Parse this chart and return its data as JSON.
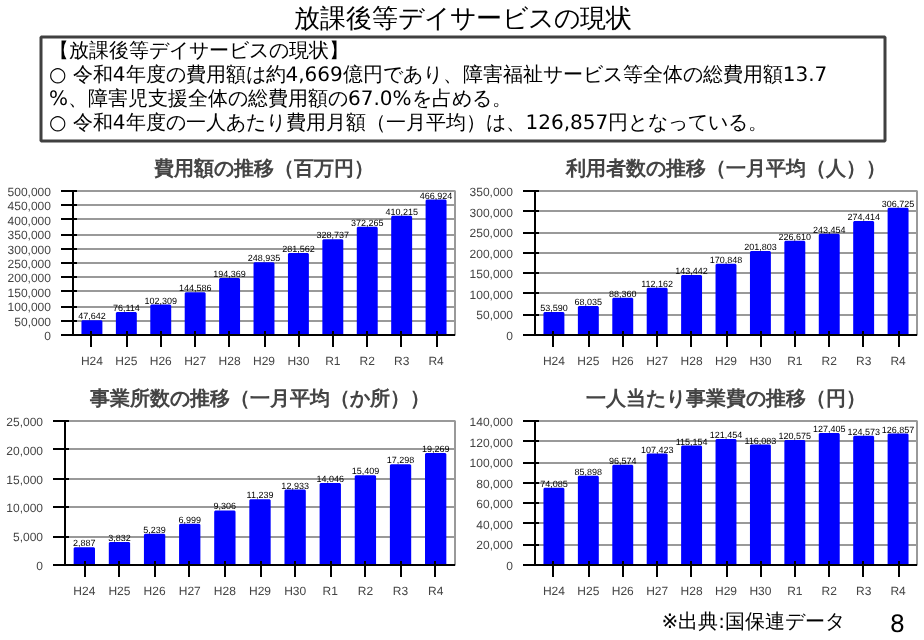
{
  "chart_data": [
    {
      "type": "other",
      "title": "放課後等デイサービスの現状",
      "subtitle": "【放課後等デイサービスの現状】",
      "annotations": [
        "○ 令和4年度の費用額は約4,669億円であり、障害福祉サービス等全体の総費用額13.7%、障害児支援全体の総費用額の67.0%を占める。",
        "○ 令和4年度の一人あたり費用月額（一月平均）は、126,857円となっている。",
        "※出典:国保連データ",
        "8"
      ]
    },
    {
      "type": "bar",
      "title": "費用額の推移（百万円）",
      "categories": [
        "H24",
        "H25",
        "H26",
        "H27",
        "H28",
        "H29",
        "H30",
        "R1",
        "R2",
        "R3",
        "R4"
      ],
      "values": [
        47642,
        76114,
        102309,
        144586,
        194369,
        248935,
        281562,
        328737,
        372265,
        410215,
        466924
      ],
      "value_labels": [
        "47,642",
        "76,114",
        "102,309",
        "144,586",
        "194,369",
        "248,935",
        "281,562",
        "328,737",
        "372,265",
        "410,215",
        "466,924"
      ],
      "color": "#0000ff",
      "ylim": [
        0,
        500000
      ],
      "yticks": [
        0,
        {
          "value": 50000,
          "label": "50,000"
        },
        {
          "value": 100000,
          "label": "100,000"
        },
        {
          "value": 150000,
          "label": "150,000"
        },
        {
          "value": 200000,
          "label": "200,000"
        },
        {
          "value": 250000,
          "label": "250,000"
        },
        {
          "value": 300000,
          "label": "300,000"
        },
        {
          "value": 350000,
          "label": "350,000"
        },
        {
          "value": 400000,
          "label": "400,000"
        },
        {
          "value": 450000,
          "label": "450,000"
        },
        {
          "value": 500000,
          "label": "500,000"
        }
      ],
      "grid": "y"
    },
    {
      "type": "bar",
      "title": "利用者数の推移（一月平均（人））",
      "categories": [
        "H24",
        "H25",
        "H26",
        "H27",
        "H28",
        "H29",
        "H30",
        "R1",
        "R2",
        "R3",
        "R4"
      ],
      "values": [
        53590,
        68035,
        88360,
        112162,
        143442,
        170848,
        201803,
        226610,
        243454,
        274414,
        306725
      ],
      "value_labels": [
        "53,590",
        "68,035",
        "88,360",
        "112,162",
        "143,442",
        "170,848",
        "201,803",
        "226,610",
        "243,454",
        "274,414",
        "306,725"
      ],
      "color": "#0000ff",
      "ylim": [
        0,
        350000
      ],
      "yticks": [
        0,
        {
          "value": 50000,
          "label": "50,000"
        },
        {
          "value": 100000,
          "label": "100,000"
        },
        {
          "value": 150000,
          "label": "150,000"
        },
        {
          "value": 200000,
          "label": "200,000"
        },
        {
          "value": 250000,
          "label": "250,000"
        },
        {
          "value": 300000,
          "label": "300,000"
        },
        {
          "value": 350000,
          "label": "350,000"
        }
      ],
      "grid": "y"
    },
    {
      "type": "bar",
      "title": "事業所数の推移（一月平均（か所））",
      "categories": [
        "H24",
        "H25",
        "H26",
        "H27",
        "H28",
        "H29",
        "H30",
        "R1",
        "R2",
        "R3",
        "R4"
      ],
      "values": [
        2887,
        3832,
        5239,
        6999,
        9306,
        11239,
        12933,
        14046,
        15409,
        17298,
        19269
      ],
      "value_labels": [
        "2,887",
        "3,832",
        "5,239",
        "6,999",
        "9,306",
        "11,239",
        "12,933",
        "14,046",
        "15,409",
        "17,298",
        "19,269"
      ],
      "color": "#0000ff",
      "ylim": [
        0,
        25000
      ],
      "yticks": [
        0,
        {
          "value": 5000,
          "label": "5,000"
        },
        {
          "value": 10000,
          "label": "10,000"
        },
        {
          "value": 15000,
          "label": "15,000"
        },
        {
          "value": 20000,
          "label": "20,000"
        },
        {
          "value": 25000,
          "label": "25,000"
        }
      ],
      "grid": "y"
    },
    {
      "type": "bar",
      "title": "一人当たり事業費の推移（円）",
      "categories": [
        "H24",
        "H25",
        "H26",
        "H27",
        "H28",
        "H29",
        "H30",
        "R1",
        "R2",
        "R3",
        "R4"
      ],
      "values": [
        74085,
        85898,
        96574,
        107423,
        115154,
        121454,
        116083,
        120575,
        127405,
        124573,
        126857
      ],
      "value_labels": [
        "74,085",
        "85,898",
        "96,574",
        "107,423",
        "115,154",
        "121,454",
        "116,083",
        "120,575",
        "127,405",
        "124,573",
        "126,857"
      ],
      "color": "#0000ff",
      "ylim": [
        0,
        140000
      ],
      "yticks": [
        0,
        {
          "value": 20000,
          "label": "20,000"
        },
        {
          "value": 40000,
          "label": "40,000"
        },
        {
          "value": 60000,
          "label": "60,000"
        },
        {
          "value": 80000,
          "label": "80,000"
        },
        {
          "value": 100000,
          "label": "100,000"
        },
        {
          "value": 120000,
          "label": "120,000"
        },
        {
          "value": 140000,
          "label": "140,000"
        }
      ],
      "grid": "y"
    }
  ]
}
